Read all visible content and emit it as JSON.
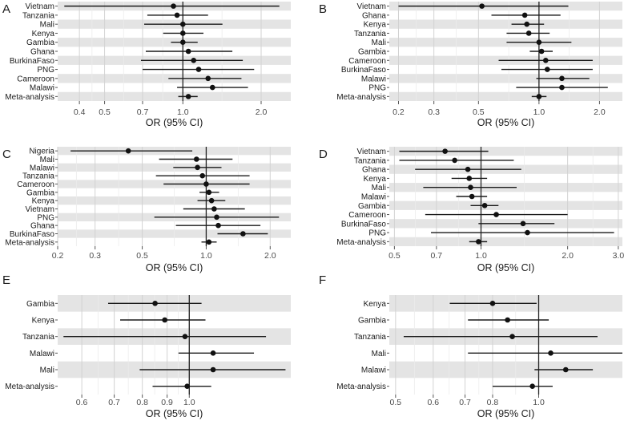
{
  "figure": {
    "colors": {
      "band": "#e4e4e4",
      "panel_bg": "#ffffff",
      "grid_major": "#d2d2d2",
      "grid_minor": "#ececec",
      "line": "#1a1a1a",
      "point": "#111111",
      "ref_line": "#222222",
      "text": "#4d4d4d",
      "label": "#1a1a1a"
    }
  },
  "chart_data": [
    {
      "panel": "A",
      "type": "forest",
      "scale": "log",
      "xlabel": "OR (95% CI)",
      "ref": 1.0,
      "xlim": [
        0.33,
        2.6
      ],
      "ticks": [
        {
          "v": 0.4,
          "label": "0.4"
        },
        {
          "v": 0.5,
          "label": "0.5"
        },
        {
          "v": 0.7,
          "label": "0.7"
        },
        {
          "v": 1.0,
          "label": "1.0"
        },
        {
          "v": 2.0,
          "label": "2.0"
        }
      ],
      "rows": [
        {
          "label": "Vietnam",
          "or": 0.92,
          "lo": 0.35,
          "hi": 2.35
        },
        {
          "label": "Tanzania",
          "or": 0.95,
          "lo": 0.73,
          "hi": 1.25
        },
        {
          "label": "Mali",
          "or": 1.0,
          "lo": 0.71,
          "hi": 1.42
        },
        {
          "label": "Kenya",
          "or": 1.0,
          "lo": 0.84,
          "hi": 1.2
        },
        {
          "label": "Gambia",
          "or": 1.0,
          "lo": 0.9,
          "hi": 1.14
        },
        {
          "label": "Ghana",
          "or": 1.05,
          "lo": 0.72,
          "hi": 1.55
        },
        {
          "label": "BurkinaFaso",
          "or": 1.1,
          "lo": 0.69,
          "hi": 1.7
        },
        {
          "label": "PNG",
          "or": 1.15,
          "lo": 0.7,
          "hi": 1.88
        },
        {
          "label": "Cameroon",
          "or": 1.25,
          "lo": 0.88,
          "hi": 1.68
        },
        {
          "label": "Malawi",
          "or": 1.3,
          "lo": 0.95,
          "hi": 1.78
        },
        {
          "label": "Meta-analysis",
          "or": 1.05,
          "lo": 0.96,
          "hi": 1.14
        }
      ]
    },
    {
      "panel": "B",
      "type": "forest",
      "scale": "log",
      "xlabel": "OR (95% CI)",
      "ref": 1.0,
      "xlim": [
        0.18,
        2.6
      ],
      "ticks": [
        {
          "v": 0.2,
          "label": "0.2"
        },
        {
          "v": 0.3,
          "label": "0.3"
        },
        {
          "v": 0.5,
          "label": "0.5"
        },
        {
          "v": 1.0,
          "label": "1.0"
        },
        {
          "v": 2.0,
          "label": "2.0"
        }
      ],
      "rows": [
        {
          "label": "Vietnam",
          "or": 0.52,
          "lo": 0.2,
          "hi": 1.4
        },
        {
          "label": "Ghana",
          "or": 0.85,
          "lo": 0.58,
          "hi": 1.28
        },
        {
          "label": "Kenya",
          "or": 0.87,
          "lo": 0.73,
          "hi": 1.06
        },
        {
          "label": "Tanzania",
          "or": 0.89,
          "lo": 0.69,
          "hi": 1.13
        },
        {
          "label": "Mali",
          "or": 1.0,
          "lo": 0.69,
          "hi": 1.45
        },
        {
          "label": "Gambia",
          "or": 1.03,
          "lo": 0.9,
          "hi": 1.17
        },
        {
          "label": "Cameroon",
          "or": 1.08,
          "lo": 0.63,
          "hi": 1.85
        },
        {
          "label": "BurkinaFaso",
          "or": 1.1,
          "lo": 0.65,
          "hi": 1.85
        },
        {
          "label": "Malawi",
          "or": 1.3,
          "lo": 0.97,
          "hi": 1.78
        },
        {
          "label": "PNG",
          "or": 1.3,
          "lo": 0.77,
          "hi": 2.2
        },
        {
          "label": "Meta-analysis",
          "or": 1.0,
          "lo": 0.92,
          "hi": 1.09
        }
      ]
    },
    {
      "panel": "C",
      "type": "forest",
      "scale": "log",
      "xlabel": "OR (95% CI)",
      "ref": 1.0,
      "xlim": [
        0.2,
        2.5
      ],
      "ticks": [
        {
          "v": 0.2,
          "label": "0.2"
        },
        {
          "v": 0.3,
          "label": "0.3"
        },
        {
          "v": 0.5,
          "label": "0.5"
        },
        {
          "v": 1.0,
          "label": "1.0"
        },
        {
          "v": 2.0,
          "label": "2.0"
        }
      ],
      "rows": [
        {
          "label": "Nigeria",
          "or": 0.43,
          "lo": 0.23,
          "hi": 0.86
        },
        {
          "label": "Mali",
          "or": 0.9,
          "lo": 0.6,
          "hi": 1.33
        },
        {
          "label": "Malawi",
          "or": 0.91,
          "lo": 0.7,
          "hi": 1.18
        },
        {
          "label": "Tanzania",
          "or": 0.96,
          "lo": 0.58,
          "hi": 1.6
        },
        {
          "label": "Cameroon",
          "or": 1.0,
          "lo": 0.63,
          "hi": 1.6
        },
        {
          "label": "Gambia",
          "or": 1.03,
          "lo": 0.93,
          "hi": 1.15
        },
        {
          "label": "Kenya",
          "or": 1.06,
          "lo": 0.91,
          "hi": 1.23
        },
        {
          "label": "Vietnam",
          "or": 1.09,
          "lo": 0.78,
          "hi": 1.52
        },
        {
          "label": "PNG",
          "or": 1.12,
          "lo": 0.57,
          "hi": 2.2
        },
        {
          "label": "Ghana",
          "or": 1.14,
          "lo": 0.72,
          "hi": 1.8
        },
        {
          "label": "BurkinaFaso",
          "or": 1.49,
          "lo": 1.13,
          "hi": 1.95
        },
        {
          "label": "Meta-analysis",
          "or": 1.03,
          "lo": 0.95,
          "hi": 1.12
        }
      ]
    },
    {
      "panel": "D",
      "type": "forest",
      "scale": "log",
      "xlabel": "OR (95% CI)",
      "ref": 1.0,
      "xlim": [
        0.48,
        3.1
      ],
      "ticks": [
        {
          "v": 0.5,
          "label": "0.5"
        },
        {
          "v": 0.7,
          "label": "0.7"
        },
        {
          "v": 1.0,
          "label": "1.0"
        },
        {
          "v": 2.0,
          "label": "2.0"
        },
        {
          "v": 3.0,
          "label": "3.0"
        }
      ],
      "rows": [
        {
          "label": "Vietnam",
          "or": 0.75,
          "lo": 0.52,
          "hi": 1.06
        },
        {
          "label": "Tanzania",
          "or": 0.81,
          "lo": 0.52,
          "hi": 1.3
        },
        {
          "label": "Ghana",
          "or": 0.9,
          "lo": 0.59,
          "hi": 1.38
        },
        {
          "label": "Kenya",
          "or": 0.91,
          "lo": 0.79,
          "hi": 1.05
        },
        {
          "label": "Mali",
          "or": 0.92,
          "lo": 0.63,
          "hi": 1.33
        },
        {
          "label": "Malawi",
          "or": 0.93,
          "lo": 0.82,
          "hi": 1.05
        },
        {
          "label": "Gambia",
          "or": 1.03,
          "lo": 0.92,
          "hi": 1.15
        },
        {
          "label": "Cameroon",
          "or": 1.13,
          "lo": 0.64,
          "hi": 2.0
        },
        {
          "label": "BurkinaFaso",
          "or": 1.4,
          "lo": 0.98,
          "hi": 1.8
        },
        {
          "label": "PNG",
          "or": 1.45,
          "lo": 0.67,
          "hi": 2.9
        },
        {
          "label": "Meta-analysis",
          "or": 0.98,
          "lo": 0.91,
          "hi": 1.05
        }
      ]
    },
    {
      "panel": "E",
      "type": "forest",
      "scale": "log",
      "xlabel": "OR (95% CI)",
      "ref": 1.0,
      "xlim": [
        0.535,
        1.62
      ],
      "ticks": [
        {
          "v": 0.6,
          "label": "0.6"
        },
        {
          "v": 0.7,
          "label": "0.7"
        },
        {
          "v": 0.8,
          "label": "0.8"
        },
        {
          "v": 0.9,
          "label": "0.9"
        },
        {
          "v": 1.0,
          "label": "1.0"
        }
      ],
      "rows": [
        {
          "label": "Gambia",
          "or": 0.85,
          "lo": 0.68,
          "hi": 1.06
        },
        {
          "label": "Kenya",
          "or": 0.89,
          "lo": 0.72,
          "hi": 1.08
        },
        {
          "label": "Tanzania",
          "or": 0.98,
          "lo": 0.55,
          "hi": 1.44
        },
        {
          "label": "Malawi",
          "or": 1.12,
          "lo": 0.95,
          "hi": 1.36
        },
        {
          "label": "Mali",
          "or": 1.12,
          "lo": 0.79,
          "hi": 1.58
        },
        {
          "label": "Meta-analysis",
          "or": 0.99,
          "lo": 0.84,
          "hi": 1.11
        }
      ]
    },
    {
      "panel": "F",
      "type": "forest",
      "scale": "log",
      "xlabel": "OR (95% CI)",
      "ref": 1.0,
      "xlim": [
        0.485,
        1.5
      ],
      "ticks": [
        {
          "v": 0.5,
          "label": "0.5"
        },
        {
          "v": 0.6,
          "label": "0.6"
        },
        {
          "v": 0.7,
          "label": "0.7"
        },
        {
          "v": 0.8,
          "label": "0.8"
        },
        {
          "v": 1.0,
          "label": "1.0"
        }
      ],
      "rows": [
        {
          "label": "Kenya",
          "or": 0.8,
          "lo": 0.65,
          "hi": 0.99
        },
        {
          "label": "Gambia",
          "or": 0.86,
          "lo": 0.71,
          "hi": 1.05
        },
        {
          "label": "Tanzania",
          "or": 0.88,
          "lo": 0.52,
          "hi": 1.33
        },
        {
          "label": "Mali",
          "or": 1.06,
          "lo": 0.71,
          "hi": 1.5
        },
        {
          "label": "Malawi",
          "or": 1.14,
          "lo": 0.98,
          "hi": 1.3
        },
        {
          "label": "Meta-analysis",
          "or": 0.97,
          "lo": 0.8,
          "hi": 1.07
        }
      ]
    }
  ]
}
